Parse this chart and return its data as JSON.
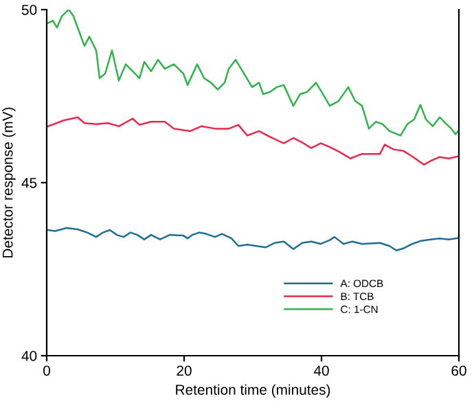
{
  "chart_data": {
    "type": "line",
    "xlabel": "Retention time (minutes)",
    "ylabel": "Detector response (mV)",
    "xlim": [
      0,
      60
    ],
    "xticks": [
      0,
      20,
      40,
      60
    ],
    "ylim": [
      40,
      50
    ],
    "yticks": [
      40,
      45,
      50
    ],
    "grid": false,
    "legend": "bottom right",
    "line_style": "solid",
    "marker": "none",
    "series": [
      {
        "name": "A: ODCB",
        "color": "#1f6e94",
        "x": [
          0.2,
          1.2,
          2.9,
          4.5,
          5.9,
          7.2,
          8.2,
          9.2,
          10.2,
          11.2,
          12.2,
          13.2,
          14.2,
          15.2,
          16.5,
          17.9,
          19.9,
          20.5,
          21.2,
          22.2,
          23.2,
          24.5,
          25.5,
          26.9,
          27.9,
          29.2,
          30.5,
          31.9,
          33.2,
          34.5,
          35.9,
          37.2,
          38.5,
          39.9,
          41.2,
          41.9,
          43.2,
          44.5,
          45.9,
          48.5,
          49.9,
          50.9,
          51.9,
          53.2,
          54.5,
          55.9,
          57.2,
          58.5,
          59.5,
          59.9
        ],
        "values": [
          43.63,
          43.6,
          43.69,
          43.65,
          43.56,
          43.43,
          43.56,
          43.63,
          43.49,
          43.43,
          43.56,
          43.49,
          43.36,
          43.49,
          43.36,
          43.49,
          43.47,
          43.39,
          43.49,
          43.56,
          43.52,
          43.43,
          43.52,
          43.39,
          43.17,
          43.21,
          43.17,
          43.13,
          43.26,
          43.3,
          43.08,
          43.26,
          43.3,
          43.23,
          43.34,
          43.43,
          43.23,
          43.3,
          43.23,
          43.26,
          43.17,
          43.04,
          43.1,
          43.23,
          43.32,
          43.36,
          43.39,
          43.36,
          43.39,
          43.4
        ]
      },
      {
        "name": "B: TCB",
        "color": "#e8294a",
        "x": [
          0.2,
          2.5,
          4.5,
          5.5,
          7.2,
          8.9,
          10.5,
          12.5,
          13.5,
          15.2,
          17.2,
          18.5,
          20.9,
          22.5,
          24.5,
          26.5,
          27.9,
          29.2,
          30.9,
          32.5,
          34.5,
          35.9,
          37.2,
          38.5,
          39.9,
          41.2,
          42.5,
          44.2,
          45.9,
          47.2,
          48.5,
          49.2,
          50.5,
          51.9,
          53.2,
          54.9,
          55.9,
          57.2,
          58.5,
          59.9
        ],
        "values": [
          46.63,
          46.8,
          46.89,
          46.72,
          46.69,
          46.72,
          46.63,
          46.85,
          46.67,
          46.76,
          46.76,
          46.56,
          46.49,
          46.63,
          46.56,
          46.56,
          46.67,
          46.36,
          46.49,
          46.32,
          46.14,
          46.29,
          46.16,
          46.0,
          46.14,
          46.03,
          45.9,
          45.7,
          45.83,
          45.83,
          45.83,
          46.1,
          45.96,
          45.92,
          45.76,
          45.52,
          45.63,
          45.74,
          45.7,
          45.76
        ]
      },
      {
        "name": "C: 1-CN",
        "color": "#2fb34a",
        "x": [
          0.2,
          0.9,
          1.5,
          2.2,
          3.2,
          3.9,
          4.5,
          5.5,
          6.2,
          7.2,
          7.7,
          8.5,
          9.5,
          10.5,
          11.5,
          12.5,
          13.5,
          14.2,
          15.2,
          16.2,
          17.2,
          18.5,
          19.9,
          20.5,
          21.9,
          22.9,
          23.9,
          24.9,
          25.9,
          26.5,
          27.5,
          28.5,
          29.9,
          30.9,
          31.5,
          32.5,
          33.5,
          34.5,
          35.9,
          36.9,
          37.9,
          39.2,
          40.2,
          41.2,
          42.5,
          43.9,
          44.9,
          45.9,
          46.9,
          47.9,
          48.9,
          49.9,
          51.5,
          52.5,
          53.5,
          54.4,
          55.2,
          56.2,
          57.2,
          58.2,
          58.9,
          59.5,
          59.9
        ],
        "values": [
          49.61,
          49.68,
          49.48,
          49.81,
          50.0,
          49.81,
          49.48,
          48.95,
          49.22,
          48.82,
          48.02,
          48.15,
          48.82,
          47.95,
          48.42,
          48.22,
          48.02,
          48.49,
          48.22,
          48.55,
          48.29,
          48.42,
          48.15,
          47.82,
          48.42,
          48.02,
          47.89,
          47.69,
          47.89,
          48.29,
          48.55,
          48.22,
          47.76,
          47.89,
          47.56,
          47.62,
          47.76,
          47.82,
          47.22,
          47.56,
          47.62,
          47.89,
          47.56,
          47.22,
          47.36,
          47.76,
          47.36,
          47.22,
          46.56,
          46.76,
          46.69,
          46.49,
          46.36,
          46.69,
          46.83,
          47.25,
          46.83,
          46.63,
          46.89,
          46.69,
          46.56,
          46.4,
          46.49
        ]
      }
    ]
  }
}
